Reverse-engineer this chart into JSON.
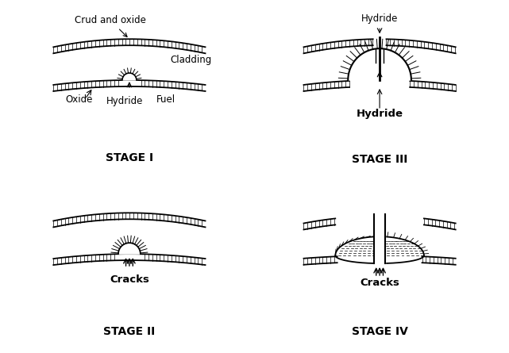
{
  "background_color": "#ffffff",
  "line_color": "#000000",
  "stage_labels": [
    "STAGE I",
    "STAGE II",
    "STAGE III",
    "STAGE IV"
  ],
  "label_fontsize": 8.5,
  "stage_fontsize": 10
}
